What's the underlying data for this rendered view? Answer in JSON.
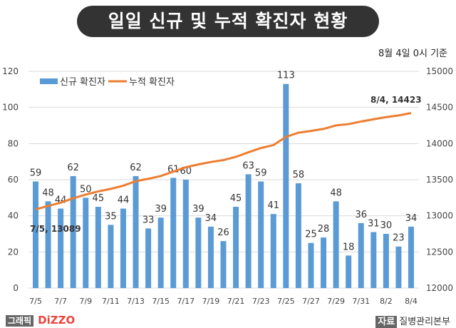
{
  "header": {
    "title": "일일 신규 및 누적 확진자 현황",
    "basis": "8월 4일 0시 기준"
  },
  "footer": {
    "credit_tag": "그래픽",
    "credit_logo": "DiZZO",
    "source_tag": "자료",
    "source": "질병관리본부"
  },
  "chart_data": {
    "type": "bar+line",
    "title": "일일 신규 및 누적 확진자 현황",
    "legend": [
      "신규 확진자",
      "누적 확진자"
    ],
    "legend_position": "top-left",
    "colors": {
      "bar": "#5b9bd5",
      "line": "#ed7d31"
    },
    "x": [
      "7/5",
      "7/6",
      "7/7",
      "7/8",
      "7/9",
      "7/10",
      "7/11",
      "7/12",
      "7/13",
      "7/14",
      "7/15",
      "7/16",
      "7/17",
      "7/18",
      "7/19",
      "7/20",
      "7/21",
      "7/22",
      "7/23",
      "7/24",
      "7/25",
      "7/26",
      "7/27",
      "7/28",
      "7/29",
      "7/30",
      "7/31",
      "8/1",
      "8/2",
      "8/3",
      "8/4"
    ],
    "x_ticks": [
      "7/5",
      "7/7",
      "7/9",
      "7/11",
      "7/13",
      "7/15",
      "7/17",
      "7/19",
      "7/21",
      "7/23",
      "7/25",
      "7/27",
      "7/29",
      "7/31",
      "8/2",
      "8/4"
    ],
    "series": [
      {
        "name": "신규 확진자",
        "type": "bar",
        "axis": "left",
        "values": [
          59,
          48,
          44,
          62,
          50,
          45,
          35,
          44,
          62,
          33,
          39,
          61,
          60,
          39,
          34,
          26,
          45,
          63,
          59,
          41,
          113,
          58,
          25,
          28,
          48,
          18,
          36,
          31,
          30,
          23,
          34
        ]
      },
      {
        "name": "누적 확진자",
        "type": "line",
        "axis": "right",
        "values": [
          13089,
          13137,
          13181,
          13243,
          13293,
          13338,
          13373,
          13417,
          13479,
          13512,
          13551,
          13612,
          13672,
          13711,
          13745,
          13771,
          13816,
          13879,
          13938,
          13979,
          14092,
          14150,
          14175,
          14203,
          14251,
          14269,
          14305,
          14336,
          14366,
          14389,
          14423
        ]
      }
    ],
    "ylim_left": [
      0,
      120
    ],
    "yticks_left": [
      "0",
      "20",
      "40",
      "60",
      "80",
      "100",
      "120"
    ],
    "ylim_right": [
      12000,
      15000
    ],
    "yticks_right": [
      "12000",
      "12500",
      "13000",
      "13500",
      "14000",
      "14500",
      "15000"
    ],
    "annotations": [
      "7/5, 13089",
      "8/4, 14423"
    ],
    "grid": true
  }
}
